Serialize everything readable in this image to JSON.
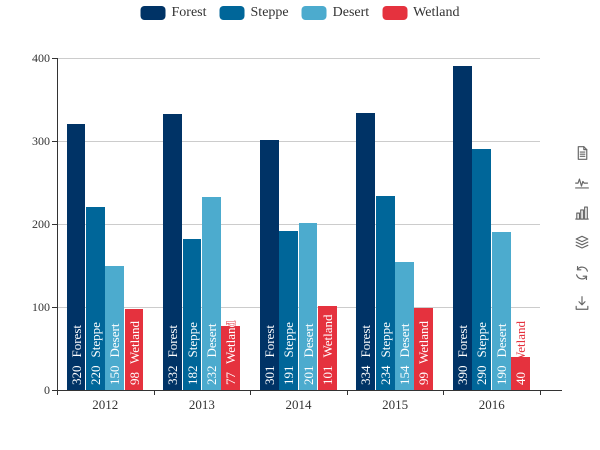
{
  "chart_data": {
    "type": "bar",
    "title": "",
    "xlabel": "",
    "ylabel": "",
    "categories": [
      "2012",
      "2013",
      "2014",
      "2015",
      "2016"
    ],
    "series": [
      {
        "name": "Forest",
        "color": "#003366",
        "values": [
          320,
          332,
          301,
          334,
          390
        ]
      },
      {
        "name": "Steppe",
        "color": "#006699",
        "values": [
          220,
          182,
          191,
          234,
          290
        ]
      },
      {
        "name": "Desert",
        "color": "#4cabce",
        "values": [
          150,
          232,
          201,
          154,
          190
        ]
      },
      {
        "name": "Wetland",
        "color": "#e5323e",
        "values": [
          98,
          77,
          101,
          99,
          40
        ]
      }
    ],
    "ylim": [
      0,
      400
    ],
    "yticks": [
      0,
      100,
      200,
      300,
      400
    ],
    "grid": true,
    "legend_position": "top",
    "bar_label_format": "{value}  {seriesName} rotated 90deg inside bottom",
    "axis_color": "#333333",
    "grid_color": "#cccccc",
    "label_text_color": "#ffffff"
  },
  "legend": {
    "items": [
      {
        "label": "Forest",
        "color": "#003366"
      },
      {
        "label": "Steppe",
        "color": "#006699"
      },
      {
        "label": "Desert",
        "color": "#4cabce"
      },
      {
        "label": "Wetland",
        "color": "#e5323e"
      }
    ]
  },
  "toolbox": {
    "color": "#666666",
    "icons": [
      {
        "name": "data-view-icon"
      },
      {
        "name": "line-chart-icon"
      },
      {
        "name": "bar-chart-icon"
      },
      {
        "name": "stack-icon"
      },
      {
        "name": "restore-icon"
      },
      {
        "name": "save-image-icon"
      }
    ]
  }
}
